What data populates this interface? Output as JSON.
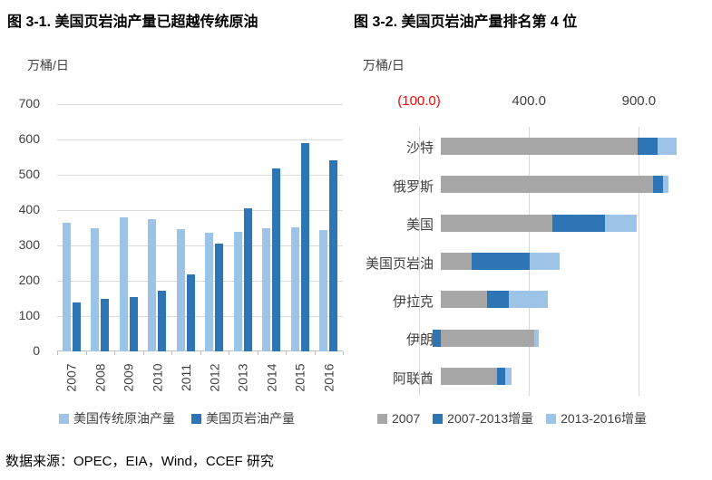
{
  "page": {
    "source_note": "数据来源：OPEC，EIA，Wind，CCEF 研究"
  },
  "colors": {
    "light_blue": "#9DC3E6",
    "dark_blue": "#2E75B6",
    "gray": "#A6A6A6",
    "tick_red": "#FF0000",
    "grid": "#D9D9D9",
    "axis": "#BFBFBF",
    "text": "#404040"
  },
  "chart_data": [
    {
      "type": "bar",
      "orientation": "vertical",
      "stacked": false,
      "title": "图 3-1. 美国页岩油产量已超越传统原油",
      "unit_label": "万桶/日",
      "categories": [
        "2007",
        "2008",
        "2009",
        "2010",
        "2011",
        "2012",
        "2013",
        "2014",
        "2015",
        "2016"
      ],
      "series": [
        {
          "name": "美国传统原油产量",
          "color": "light_blue",
          "values": [
            365,
            348,
            380,
            374,
            345,
            337,
            339,
            350,
            352,
            344
          ]
        },
        {
          "name": "美国页岩油产量",
          "color": "dark_blue",
          "values": [
            139,
            150,
            153,
            172,
            217,
            306,
            404,
            518,
            589,
            541
          ]
        }
      ],
      "ylim": [
        0,
        700
      ],
      "yticks": [
        0,
        100,
        200,
        300,
        400,
        500,
        600,
        700
      ],
      "grid": true,
      "x_label_rotation": -90,
      "legend_position": "bottom"
    },
    {
      "type": "bar",
      "orientation": "horizontal",
      "stacked": true,
      "title": "图 3-2. 美国页岩油产量排名第 4 位",
      "unit_label": "万桶/日",
      "categories": [
        "沙特",
        "俄罗斯",
        "美国",
        "美国页岩油",
        "伊拉克",
        "伊朗",
        "阿联酋"
      ],
      "series": [
        {
          "name": "2007",
          "color": "gray",
          "values": [
            895,
            965,
            505,
            140,
            210,
            425,
            255
          ]
        },
        {
          "name": "2007-2013增量",
          "color": "dark_blue",
          "values": [
            90,
            45,
            240,
            264,
            100,
            -40,
            35
          ]
        },
        {
          "name": "2013-2016增量",
          "color": "light_blue",
          "values": [
            85,
            25,
            145,
            137,
            175,
            20,
            30
          ]
        }
      ],
      "xlim": [
        -100,
        1150
      ],
      "xticks": [
        {
          "label": "(100.0)",
          "value": -100,
          "negative_style": true
        },
        {
          "label": "400.0",
          "value": 400,
          "negative_style": false
        },
        {
          "label": "900.0",
          "value": 900,
          "negative_style": false
        }
      ],
      "grid": true,
      "legend_position": "bottom"
    }
  ]
}
